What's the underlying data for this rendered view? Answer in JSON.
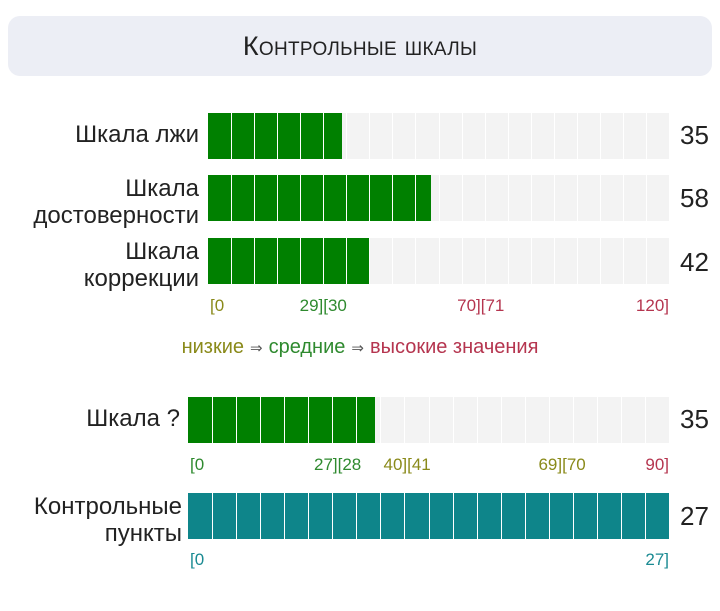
{
  "header": {
    "title": "Контрольные шкалы"
  },
  "chart_data": [
    {
      "type": "bar",
      "orientation": "horizontal",
      "title": "",
      "xlim": [
        0,
        120
      ],
      "categories": [
        "Шкала лжи",
        "Шкала достоверности",
        "Шкала коррекции"
      ],
      "values": [
        35,
        58,
        42
      ],
      "segments": 20,
      "bar_color": "#008000",
      "ticks": [
        {
          "text": "[0",
          "zone": "low",
          "at": 0
        },
        {
          "text": "29][30",
          "zone": "mid",
          "at": 30
        },
        {
          "text": "70][71",
          "zone": "high",
          "at": 71
        },
        {
          "text": "120]",
          "zone": "high",
          "at": 120
        }
      ]
    },
    {
      "type": "bar",
      "orientation": "horizontal",
      "title": "",
      "xlim": [
        0,
        90
      ],
      "categories": [
        "Шкала ?"
      ],
      "values": [
        35
      ],
      "segments": 20,
      "bar_color": "#008000",
      "ticks": [
        {
          "text": "[0",
          "zone": "mid",
          "at": 0
        },
        {
          "text": "27][28",
          "zone": "mid",
          "at": 28
        },
        {
          "text": "40][41",
          "zone": "low",
          "at": 41
        },
        {
          "text": "69][70",
          "zone": "low",
          "at": 70
        },
        {
          "text": "90]",
          "zone": "high",
          "at": 90
        }
      ]
    },
    {
      "type": "bar",
      "orientation": "horizontal",
      "title": "",
      "xlim": [
        0,
        27
      ],
      "categories": [
        "Контрольные пункты"
      ],
      "values": [
        27
      ],
      "segments": 20,
      "bar_color": "#0e858a",
      "ticks": [
        {
          "text": "[0",
          "zone": "teal",
          "at": 0
        },
        {
          "text": "27]",
          "zone": "teal",
          "at": 27
        }
      ]
    }
  ],
  "legend": {
    "low": "низкие",
    "mid": "средние",
    "high": "высокие значения",
    "arrow": "⇒"
  },
  "colors": {
    "low": "#8a8a1a",
    "mid": "#2f8a2f",
    "high": "#b5354f",
    "teal": "#1a8a92"
  }
}
